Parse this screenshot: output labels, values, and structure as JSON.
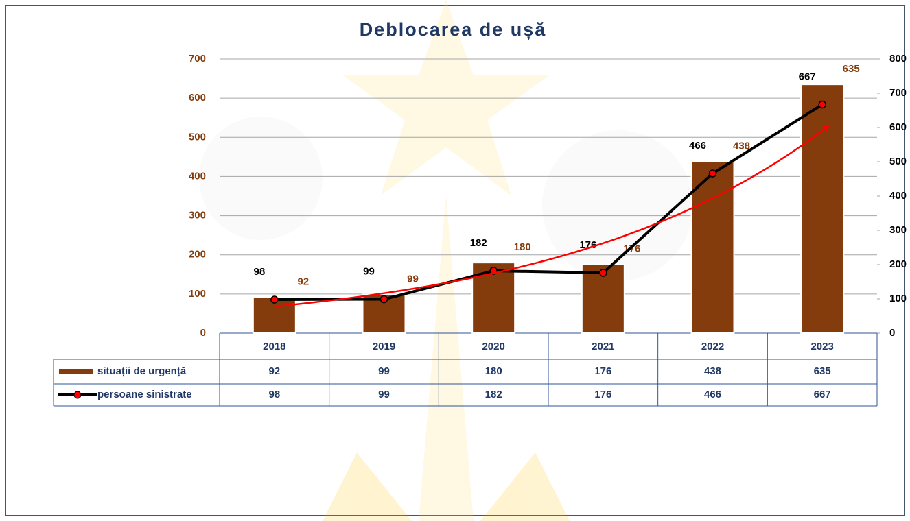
{
  "chart_data": {
    "type": "bar",
    "title": "Deblocarea de ușă",
    "categories": [
      "2018",
      "2019",
      "2020",
      "2021",
      "2022",
      "2023"
    ],
    "series": [
      {
        "name": "situații de urgență",
        "type": "bar",
        "color": "#843c0c",
        "values": [
          92,
          99,
          180,
          176,
          438,
          635
        ]
      },
      {
        "name": "persoane sinistrate",
        "type": "line",
        "axis": "y2",
        "color": "#000000",
        "marker_color": "#ff0000",
        "values": [
          98,
          99,
          182,
          176,
          466,
          667
        ]
      }
    ],
    "ylim": [
      0,
      700
    ],
    "yticks": [
      0,
      100,
      200,
      300,
      400,
      500,
      600,
      700
    ],
    "y2lim": [
      0,
      800
    ],
    "y2ticks": [
      0,
      100,
      200,
      300,
      400,
      500,
      600,
      700,
      800
    ],
    "grid": true,
    "trendline_color": "#ff0000"
  }
}
